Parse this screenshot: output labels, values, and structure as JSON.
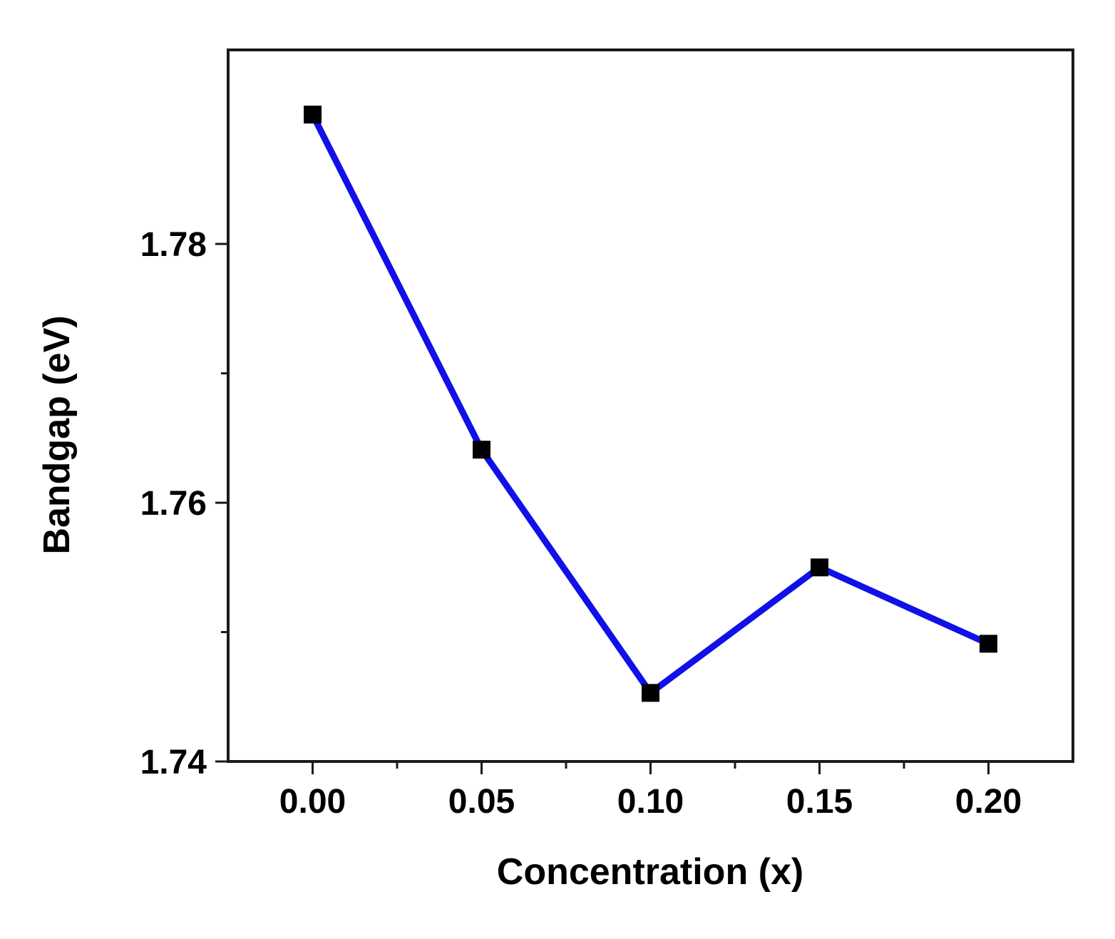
{
  "chart_data": {
    "type": "line",
    "title": "",
    "xlabel": "Concentration (x)",
    "ylabel": "Bandgap (eV)",
    "x": [
      0.0,
      0.05,
      0.1,
      0.15,
      0.2
    ],
    "series": [
      {
        "name": "Bandgap",
        "values": [
          1.79,
          1.7641,
          1.7453,
          1.755,
          1.7491
        ],
        "color": "#1010e8",
        "marker": "square",
        "marker_color": "#000000"
      }
    ],
    "xlim": [
      -0.025,
      0.225
    ],
    "ylim": [
      1.74,
      1.795
    ],
    "x_ticks": [
      0.0,
      0.05,
      0.1,
      0.15,
      0.2
    ],
    "x_tick_labels": [
      "0.00",
      "0.05",
      "0.10",
      "0.15",
      "0.20"
    ],
    "x_minor_ticks": [
      0.025,
      0.075,
      0.125,
      0.175
    ],
    "y_ticks": [
      1.74,
      1.76,
      1.78
    ],
    "y_tick_labels": [
      "1.74",
      "1.76",
      "1.78"
    ],
    "y_minor_ticks": [
      1.75,
      1.77
    ],
    "grid": false,
    "legend": "none"
  }
}
